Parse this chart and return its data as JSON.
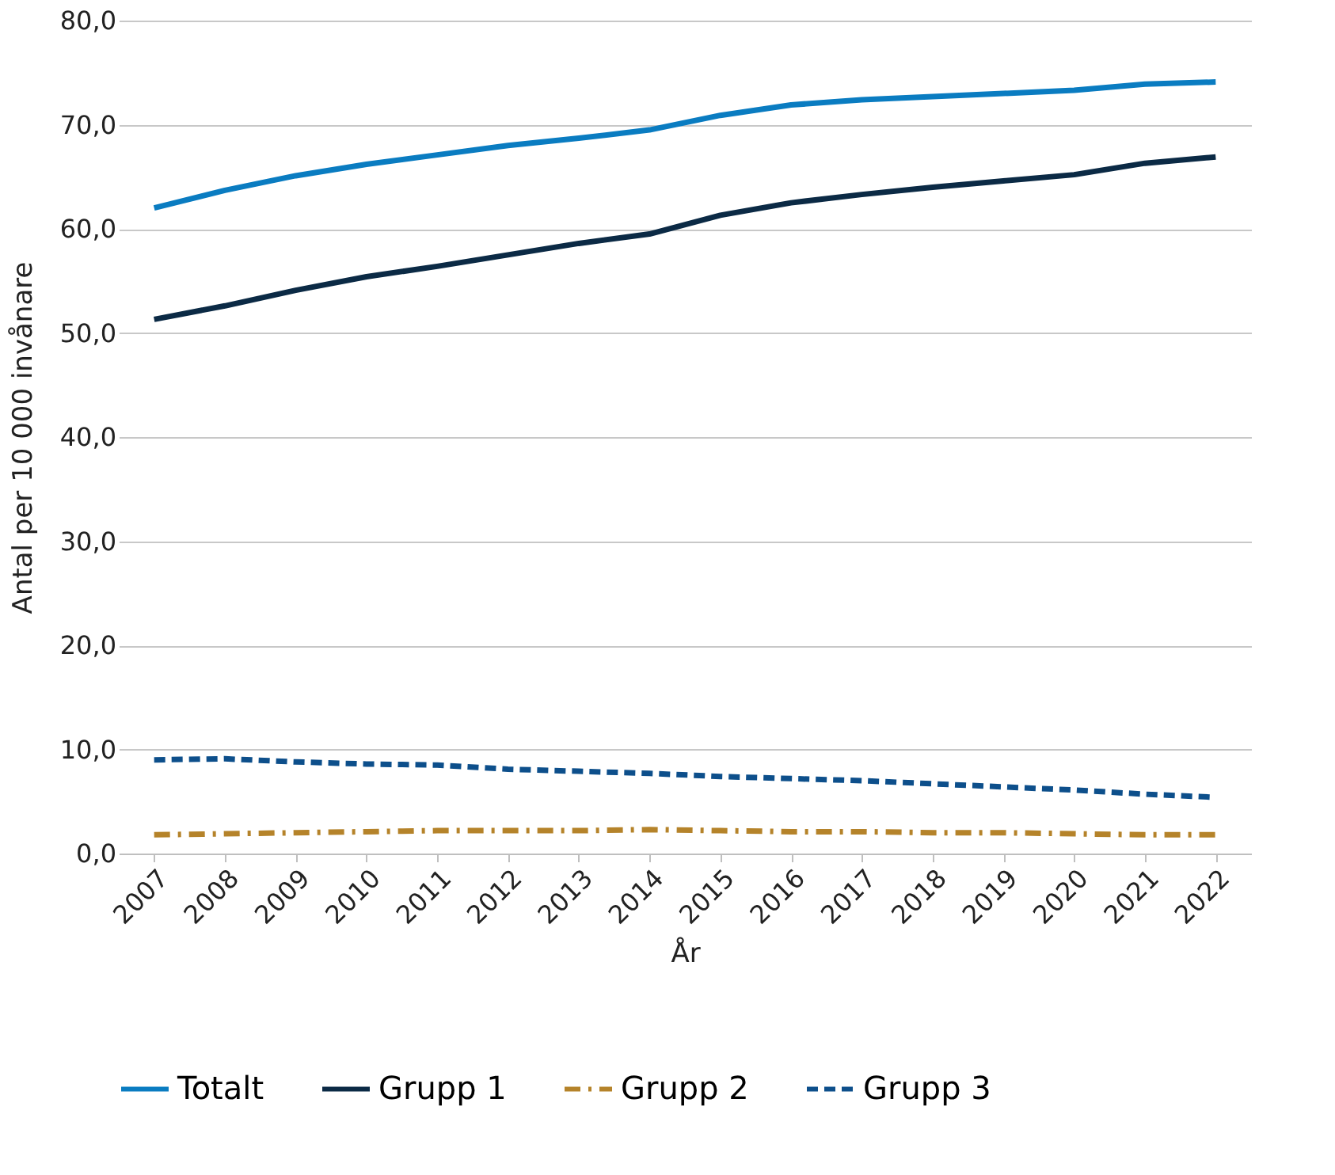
{
  "chart_data": {
    "type": "line",
    "xlabel": "År",
    "ylabel": "Antal per 10 000 invånare",
    "categories": [
      "2007",
      "2008",
      "2009",
      "2010",
      "2011",
      "2012",
      "2013",
      "2014",
      "2015",
      "2016",
      "2017",
      "2018",
      "2019",
      "2020",
      "2021",
      "2022"
    ],
    "series": [
      {
        "name": "Totalt",
        "color": "#0a7cc1",
        "line_style": "solid",
        "values": [
          62.0,
          63.7,
          65.1,
          66.2,
          67.1,
          68.0,
          68.7,
          69.5,
          70.9,
          71.9,
          72.4,
          72.7,
          73.0,
          73.3,
          73.9,
          74.1
        ]
      },
      {
        "name": "Grupp 1",
        "color": "#0b2a45",
        "line_style": "solid",
        "values": [
          51.3,
          52.6,
          54.1,
          55.4,
          56.4,
          57.5,
          58.6,
          59.5,
          61.3,
          62.5,
          63.3,
          64.0,
          64.6,
          65.2,
          66.3,
          66.9
        ]
      },
      {
        "name": "Grupp 2",
        "color": "#b5832a",
        "line_style": "dashdot",
        "values": [
          1.8,
          1.9,
          2.0,
          2.1,
          2.2,
          2.2,
          2.2,
          2.3,
          2.2,
          2.1,
          2.1,
          2.0,
          2.0,
          1.9,
          1.8,
          1.8
        ]
      },
      {
        "name": "Grupp 3",
        "color": "#0d4f8b",
        "line_style": "dashed",
        "values": [
          9.0,
          9.1,
          8.8,
          8.6,
          8.5,
          8.1,
          7.9,
          7.7,
          7.4,
          7.2,
          7.0,
          6.7,
          6.4,
          6.1,
          5.7,
          5.4
        ]
      }
    ],
    "ylim": [
      0,
      80
    ],
    "yticks": [
      {
        "value": 0,
        "label": "0,0"
      },
      {
        "value": 10,
        "label": "10,0"
      },
      {
        "value": 20,
        "label": "20,0"
      },
      {
        "value": 30,
        "label": "30,0"
      },
      {
        "value": 40,
        "label": "40,0"
      },
      {
        "value": 50,
        "label": "50,0"
      },
      {
        "value": 60,
        "label": "60,0"
      },
      {
        "value": 70,
        "label": "70,0"
      },
      {
        "value": 80,
        "label": "80,0"
      }
    ],
    "grid": "y",
    "legend": "bottom",
    "marker": "none"
  }
}
